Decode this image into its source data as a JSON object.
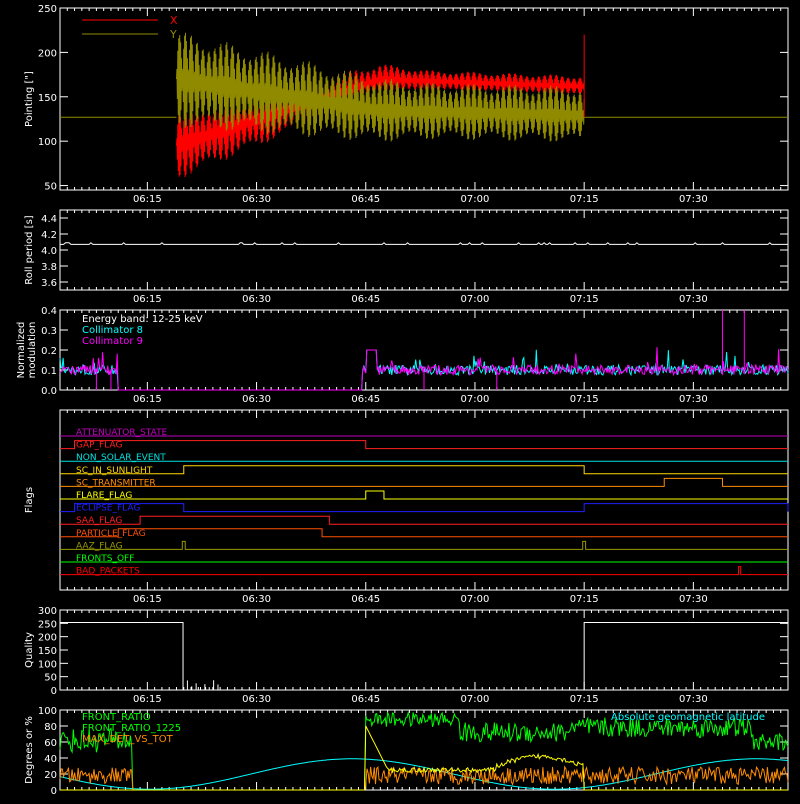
{
  "time_axis": {
    "domain_minutes": [
      0,
      100
    ],
    "ticks": [
      {
        "label": "06:15",
        "t": 12
      },
      {
        "label": "06:30",
        "t": 27
      },
      {
        "label": "06:45",
        "t": 42
      },
      {
        "label": "07:00",
        "t": 57
      },
      {
        "label": "07:15",
        "t": 72
      },
      {
        "label": "07:30",
        "t": 87
      }
    ]
  },
  "colors": {
    "axis": "#ffffff",
    "red": "#ff0000",
    "olive": "#8f8a00",
    "cyan": "#00ffff",
    "magenta": "#ff00ff",
    "green": "#00ff00",
    "orange": "#ff8c00",
    "yellow": "#ffff00",
    "blue": "#0000ff",
    "purple": "#c000c0",
    "white": "#ffffff"
  },
  "chart_data": [
    {
      "type": "line",
      "ylabel": "Pointing [\"]",
      "ylim": [
        45,
        250
      ],
      "yticks": [
        50,
        100,
        150,
        200,
        250
      ],
      "legend": [
        {
          "name": "X",
          "color": "#ff0000"
        },
        {
          "name": "Y",
          "color": "#8f8a00"
        }
      ],
      "flat_value": 127,
      "active_range": [
        16,
        72
      ],
      "series": [
        {
          "name": "X",
          "description_values": {
            "start_center": 95,
            "mid_center": 170,
            "end_center": 162,
            "start_amp": 40,
            "end_amp": 12
          }
        },
        {
          "name": "Y",
          "description_values": {
            "start_center": 170,
            "mid_center": 135,
            "end_center": 130,
            "start_amp": 55,
            "end_amp": 32
          }
        }
      ]
    },
    {
      "type": "line",
      "ylabel": "Roll period [s]",
      "ylim": [
        3.5,
        4.5
      ],
      "yticks": [
        3.6,
        3.8,
        4.0,
        4.2,
        4.4
      ],
      "value": 4.07
    },
    {
      "type": "line",
      "ylabel": "Normalized modulation",
      "ylim": [
        0,
        0.4
      ],
      "yticks": [
        0.0,
        0.1,
        0.2,
        0.3,
        0.4
      ],
      "legend": [
        {
          "name": "Energy band: 12-25 keV",
          "color": "#ffffff"
        },
        {
          "name": "Collimator 8",
          "color": "#00ffff"
        },
        {
          "name": "Collimator 9",
          "color": "#ff00ff"
        }
      ],
      "baseline": 0.1,
      "gaps": [
        [
          8,
          41.5
        ]
      ]
    },
    {
      "type": "table",
      "ylabel": "Flags",
      "flags": [
        {
          "name": "ATTENUATOR_STATE",
          "color": "#c000c0",
          "on": []
        },
        {
          "name": "GAP_FLAG",
          "color": "#ff2020",
          "on": [
            [
              2,
              42
            ]
          ]
        },
        {
          "name": "NON_SOLAR_EVENT",
          "color": "#00e0e0",
          "on": []
        },
        {
          "name": "SC_IN_SUNLIGHT",
          "color": "#ffd700",
          "on": [
            [
              17,
              72
            ]
          ]
        },
        {
          "name": "SC_TRANSMITTER",
          "color": "#ff8c00",
          "on": [
            [
              83,
              91
            ]
          ]
        },
        {
          "name": "FLARE_FLAG",
          "color": "#ffff00",
          "on": [
            [
              42,
              44.5
            ]
          ]
        },
        {
          "name": "ECLIPSE_FLAG",
          "color": "#2020ff",
          "on": [
            [
              2,
              17
            ],
            [
              72,
              100
            ]
          ]
        },
        {
          "name": "SAA_FLAG",
          "color": "#ff2020",
          "on": [
            [
              11,
              37
            ]
          ]
        },
        {
          "name": "PARTICLE_FLAG",
          "color": "#ff5000",
          "on": [
            [
              8,
              36
            ]
          ]
        },
        {
          "name": "AAZ_FLAG",
          "color": "#999900",
          "on": [
            [
              16.8,
              17.2
            ],
            [
              71.8,
              72.2
            ]
          ]
        },
        {
          "name": "FRONTS_OFF",
          "color": "#00ff00",
          "on": []
        },
        {
          "name": "BAD_PACKETS",
          "color": "#ff0000",
          "on": [
            [
              93.2,
              93.5
            ]
          ]
        }
      ]
    },
    {
      "type": "line",
      "ylabel": "Quality",
      "ylim": [
        0,
        300
      ],
      "yticks": [
        0,
        50,
        100,
        150,
        200,
        250,
        300
      ],
      "segments": [
        {
          "t0": 0,
          "t1": 16.9,
          "value": 253
        },
        {
          "t0": 16.9,
          "t1": 72,
          "value": 0
        },
        {
          "t0": 72,
          "t1": 100,
          "value": 253
        }
      ]
    },
    {
      "type": "line",
      "ylabel": "Degrees or %",
      "ylim": [
        0,
        100
      ],
      "yticks": [
        0,
        20,
        40,
        60,
        80,
        100
      ],
      "legend": [
        {
          "name": "FRONT_RATIO",
          "color": "#00ff00"
        },
        {
          "name": "FRONT_RATIO_1225",
          "color": "#00ff00"
        },
        {
          "name": "MAX_DET_VS_TOT",
          "color": "#ff8c00"
        }
      ],
      "annotation": "Absolute geomagnetic latitude"
    }
  ]
}
